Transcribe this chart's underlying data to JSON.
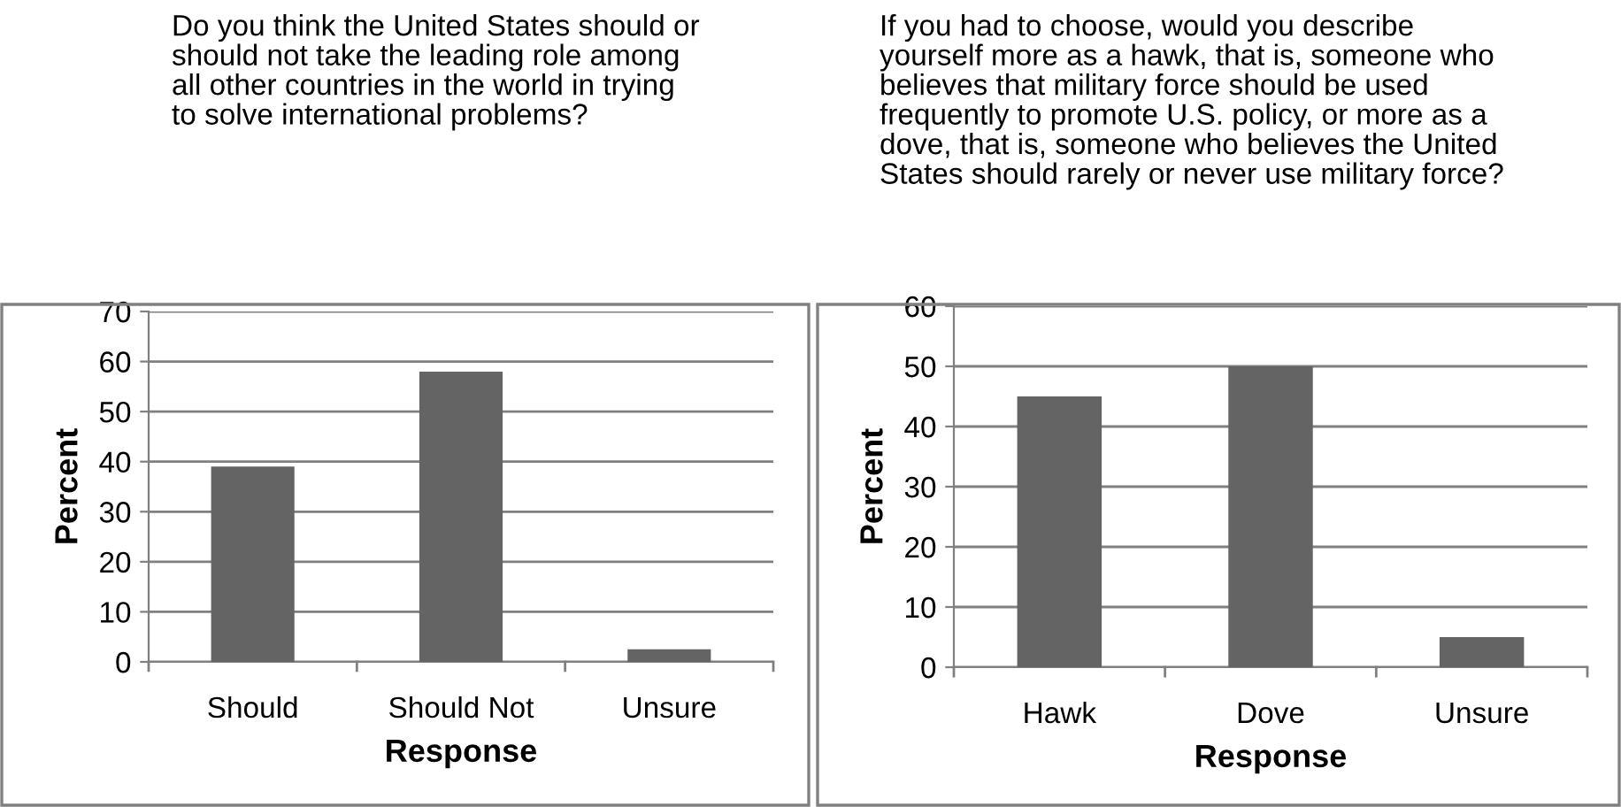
{
  "chart_data": [
    {
      "type": "bar",
      "title": "Do you think the United States should or\nshould not take the leading role among\nall other countries in the world in trying\nto solve international problems?",
      "xlabel": "Response",
      "ylabel": "Percent",
      "categories": [
        "Should",
        "Should Not",
        "Unsure"
      ],
      "values": [
        39,
        58,
        2.5
      ],
      "color": "#646464",
      "ylim": [
        0,
        70
      ],
      "yticks": [
        0,
        10,
        20,
        30,
        40,
        50,
        60,
        70
      ],
      "grid": "y"
    },
    {
      "type": "bar",
      "title": "If you had to choose, would you describe\nyourself more as a hawk, that is, someone who\nbelieves that military force should be used\nfrequently to promote U.S. policy, or more as a\ndove, that is, someone who believes the United\nStates should rarely or never use military force?",
      "xlabel": "Response",
      "ylabel": "Percent",
      "categories": [
        "Hawk",
        "Dove",
        "Unsure"
      ],
      "values": [
        45,
        50,
        5
      ],
      "color": "#646464",
      "ylim": [
        0,
        60
      ],
      "yticks": [
        0,
        10,
        20,
        30,
        40,
        50,
        60
      ],
      "grid": "y"
    }
  ]
}
